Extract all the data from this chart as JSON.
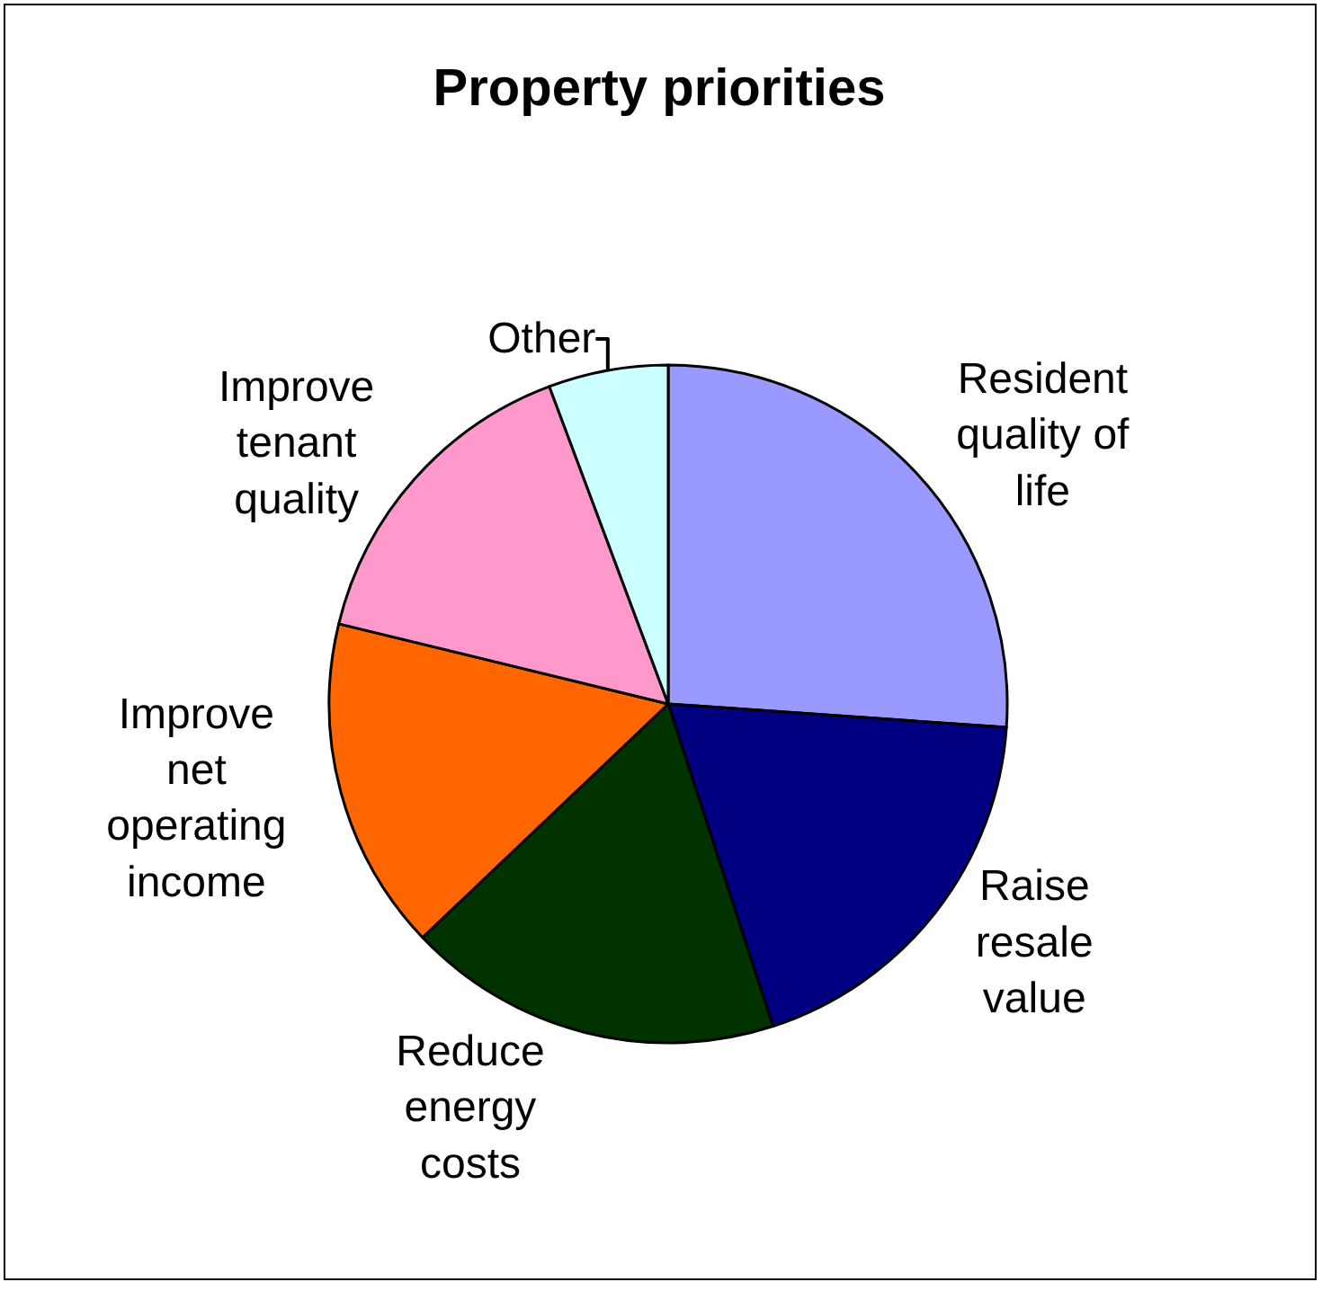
{
  "chart_data": {
    "type": "pie",
    "title": "Property priorities",
    "categories": [
      "Resident quality of life",
      "Raise resale value",
      "Reduce energy costs",
      "Improve net operating income",
      "Improve tenant quality",
      "Other"
    ],
    "values": [
      26.1,
      18.9,
      17.9,
      15.9,
      15.5,
      5.7
    ],
    "colors": [
      "#9999ff",
      "#000080",
      "#003300",
      "#ff6600",
      "#ff99cc",
      "#ccffff"
    ],
    "legend": false
  }
}
